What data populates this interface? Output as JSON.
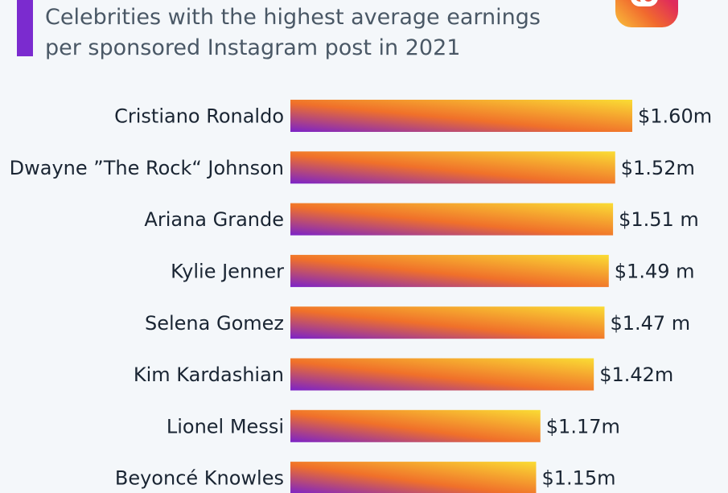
{
  "header": {
    "title_line1": "Celebrities with the highest average earnings",
    "title_line2": "per sponsored Instagram post in 2021",
    "accent_color": "#7b2bcf",
    "logo_icon": "instagram-icon"
  },
  "chart_data": {
    "type": "bar",
    "orientation": "horizontal",
    "title": "Celebrities with the highest average earnings per sponsored Instagram post in 2021",
    "xlabel": "",
    "ylabel": "",
    "categories": [
      "Cristiano Ronaldo",
      "Dwayne ”The Rock“ Johnson",
      "Ariana Grande",
      "Kylie Jenner",
      "Selena Gomez",
      "Kim Kardashian",
      "Lionel Messi",
      "Beyoncé Knowles"
    ],
    "values": [
      1.6,
      1.52,
      1.51,
      1.49,
      1.47,
      1.42,
      1.17,
      1.15
    ],
    "value_labels": [
      "$1.60m",
      "$1.52m",
      "$1.51 m",
      "$1.49 m",
      "$1.47 m",
      "$1.42m",
      "$1.17m",
      "$1.15m"
    ],
    "unit": "million US$",
    "xlim": [
      0,
      1.6
    ],
    "grid": false,
    "legend": "none",
    "bar_gradient": [
      "#7b22c9",
      "#f0702a",
      "#fadc34"
    ]
  }
}
